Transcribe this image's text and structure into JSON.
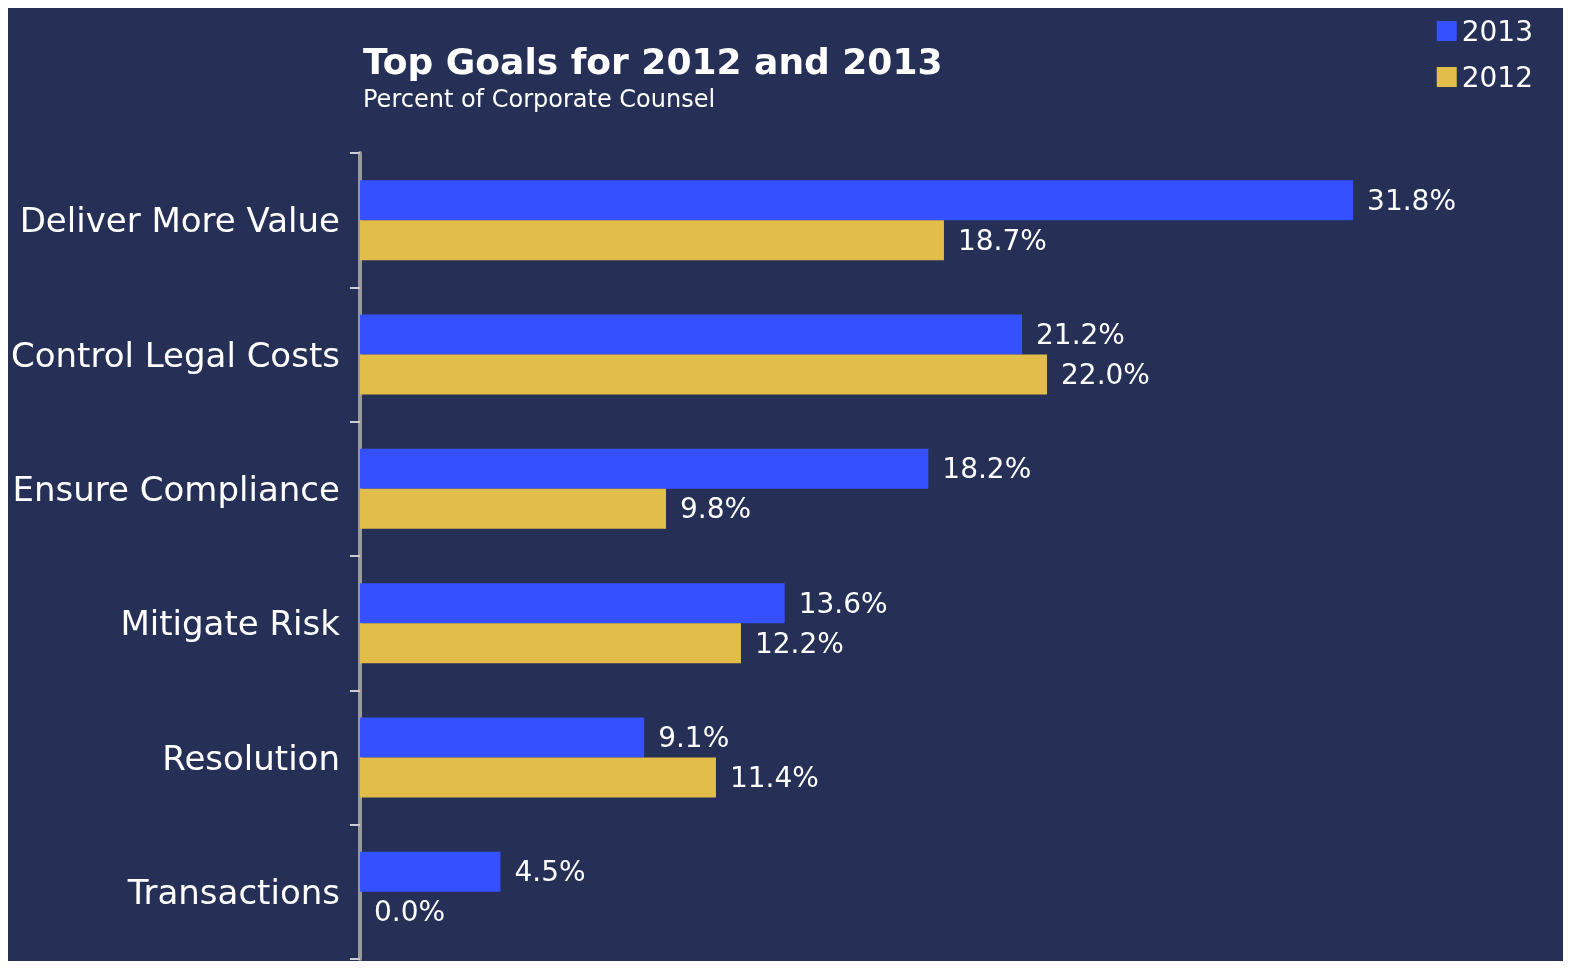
{
  "chart_data": {
    "type": "bar",
    "orientation": "horizontal",
    "title": "Top Goals for 2012 and 2013",
    "subtitle": "Percent of Corporate Counsel",
    "categories": [
      "Deliver More Value",
      "Control Legal Costs",
      "Ensure Compliance",
      "Mitigate Risk",
      "Resolution",
      "Transactions"
    ],
    "series": [
      {
        "name": "2013",
        "color": "#3550ff",
        "values": [
          31.8,
          21.2,
          18.2,
          13.6,
          9.1,
          4.5
        ],
        "value_labels": [
          "31.8%",
          "21.2%",
          "18.2%",
          "13.6%",
          "9.1%",
          "4.5%"
        ]
      },
      {
        "name": "2012",
        "color": "#e2bd4a",
        "values": [
          18.7,
          22.0,
          9.8,
          12.2,
          11.4,
          0.0
        ],
        "value_labels": [
          "18.7%",
          "22.0%",
          "9.8%",
          "12.2%",
          "11.4%",
          "0.0%"
        ]
      }
    ],
    "legend": "top right",
    "grid": false,
    "tick_labels": "y"
  }
}
